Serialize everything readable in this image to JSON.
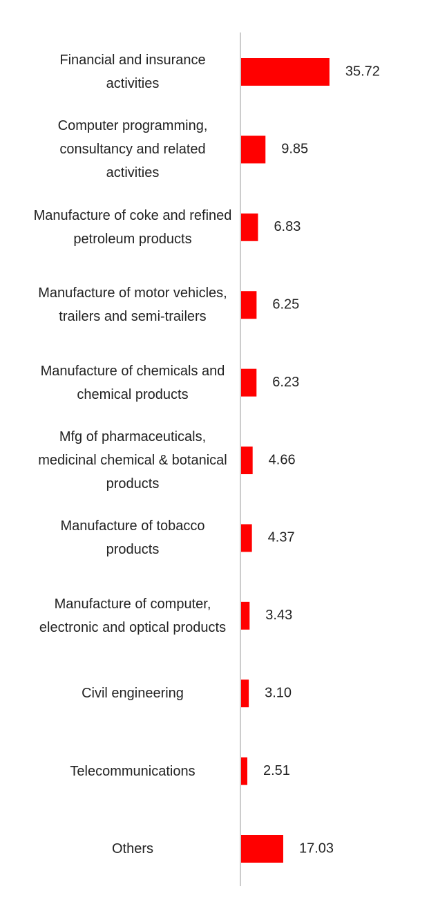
{
  "chart_data": {
    "type": "hbar",
    "categories": [
      "Financial and insurance activities",
      "Computer programming, consultancy and related activities",
      "Manufacture of coke and refined petroleum products",
      "Manufacture of motor vehicles, trailers and semi-trailers",
      "Manufacture of chemicals and chemical products",
      "Mfg of pharmaceuticals, medicinal chemical & botanical products",
      "Manufacture of tobacco products",
      "Manufacture of computer, electronic and optical products",
      "Civil engineering",
      "Telecommunications",
      "Others"
    ],
    "values": [
      35.72,
      9.85,
      6.83,
      6.25,
      6.23,
      4.66,
      4.37,
      3.43,
      3.1,
      2.51,
      17.03
    ],
    "value_labels": [
      "35.72",
      "9.85",
      "6.83",
      "6.25",
      "6.23",
      "4.66",
      "4.37",
      "3.43",
      "3.10",
      "2.51",
      "17.03"
    ],
    "color": "#ff0000"
  }
}
